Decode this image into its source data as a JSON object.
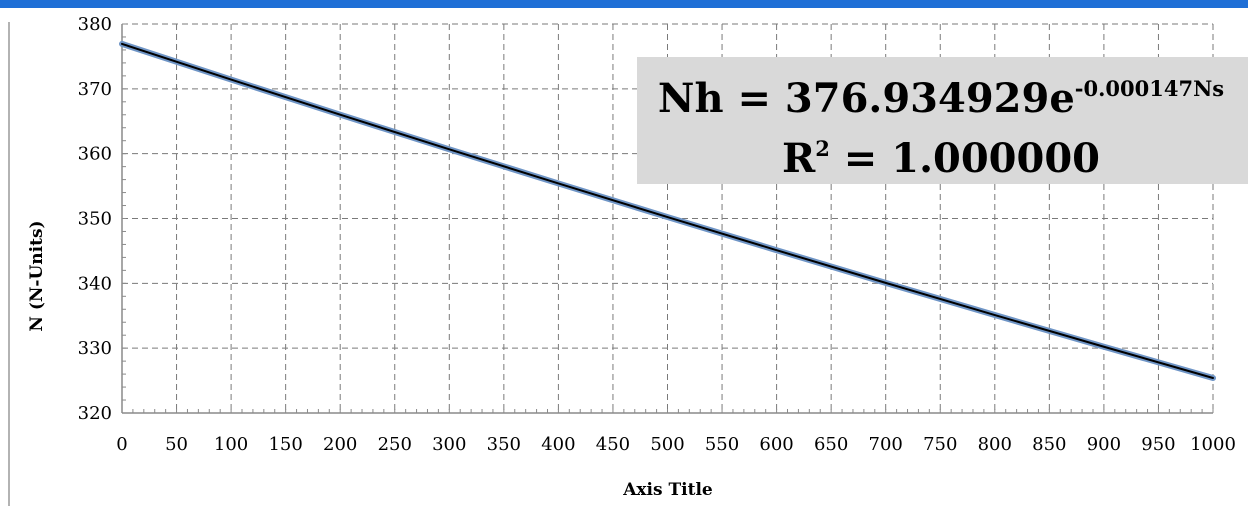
{
  "chart_data": {
    "type": "line",
    "title": "",
    "xlabel": "Axis Title",
    "ylabel": "N (N-Units)",
    "xlim": [
      0,
      1000
    ],
    "ylim": [
      320,
      380
    ],
    "x_ticks": [
      "0",
      "50",
      "100",
      "150",
      "200",
      "250",
      "300",
      "350",
      "400",
      "450",
      "500",
      "550",
      "600",
      "650",
      "700",
      "750",
      "800",
      "850",
      "900",
      "950",
      "1000"
    ],
    "y_ticks": [
      "320",
      "330",
      "340",
      "350",
      "360",
      "370",
      "380"
    ],
    "grid": true,
    "legend": "none",
    "series": [
      {
        "x": [
          0,
          100,
          200,
          300,
          400,
          500,
          600,
          700,
          800,
          900,
          1000
        ],
        "y": [
          376.93,
          371.43,
          366.01,
          360.67,
          355.41,
          350.22,
          345.11,
          340.07,
          335.11,
          330.22,
          325.4
        ],
        "color": "#000000",
        "outline_color": "#6f95c6"
      }
    ],
    "annotation": {
      "line1_base": "Nh = 376.934929e",
      "line1_exponent": "-0.000147Ns",
      "line2_base": "R",
      "line2_superscript": "2",
      "line2_rest": " = 1.000000",
      "background": "#d9d9d9"
    }
  },
  "colors": {
    "top_band": "#1f6fd6",
    "grid": "#7a7a7a"
  }
}
